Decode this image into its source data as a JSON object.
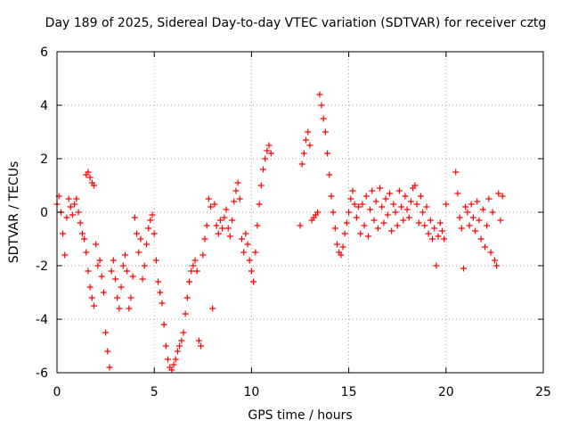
{
  "chart_data": {
    "type": "scatter",
    "title": "Day 189 of 2025, Sidereal Day-to-day VTEC variation (SDTVAR) for receiver cztg",
    "xlabel": "GPS time / hours",
    "ylabel": "SDTVAR / TECUs",
    "xlim": [
      0,
      25
    ],
    "ylim": [
      -6,
      6
    ],
    "x_ticks": [
      0,
      5,
      10,
      15,
      20,
      25
    ],
    "y_ticks": [
      -6,
      -4,
      -2,
      0,
      2,
      4,
      6
    ],
    "grid": true,
    "marker": "plus",
    "color": "#ff0000",
    "series": [
      {
        "name": "SDTVAR",
        "x": [
          0.0,
          0.1,
          0.2,
          0.3,
          0.4,
          0.5,
          0.6,
          0.7,
          0.8,
          0.9,
          1.0,
          1.1,
          1.2,
          1.3,
          1.4,
          1.5,
          1.6,
          1.7,
          1.8,
          1.9,
          1.5,
          1.6,
          1.7,
          1.8,
          1.9,
          2.0,
          2.1,
          2.2,
          2.3,
          2.4,
          2.5,
          2.6,
          2.7,
          2.8,
          2.9,
          3.0,
          3.1,
          3.2,
          3.3,
          3.4,
          3.5,
          3.6,
          3.7,
          3.8,
          3.9,
          4.0,
          4.1,
          4.2,
          4.3,
          4.4,
          4.5,
          4.6,
          4.7,
          4.8,
          4.9,
          5.0,
          5.1,
          5.2,
          5.3,
          5.4,
          5.5,
          5.6,
          5.7,
          5.8,
          5.9,
          6.0,
          6.1,
          6.2,
          6.3,
          6.4,
          6.5,
          6.6,
          6.7,
          6.8,
          6.9,
          7.0,
          7.1,
          7.2,
          7.3,
          7.4,
          7.5,
          7.6,
          7.7,
          7.8,
          7.9,
          8.0,
          8.1,
          8.2,
          8.3,
          8.4,
          8.5,
          8.6,
          8.7,
          8.8,
          8.9,
          9.0,
          9.1,
          9.2,
          9.3,
          9.4,
          9.5,
          9.6,
          9.7,
          9.8,
          9.9,
          10.0,
          10.1,
          10.2,
          10.3,
          10.4,
          10.5,
          10.6,
          10.7,
          10.8,
          10.9,
          11.0,
          12.5,
          12.6,
          12.7,
          12.8,
          12.9,
          13.0,
          13.1,
          13.2,
          13.3,
          13.4,
          13.5,
          13.6,
          13.7,
          13.8,
          13.9,
          14.0,
          14.1,
          14.2,
          14.3,
          14.4,
          14.5,
          14.6,
          14.7,
          14.8,
          14.9,
          15.0,
          15.1,
          15.2,
          15.3,
          15.4,
          15.5,
          15.6,
          15.7,
          15.8,
          15.9,
          16.0,
          16.1,
          16.2,
          16.3,
          16.4,
          16.5,
          16.6,
          16.7,
          16.8,
          16.9,
          17.0,
          17.1,
          17.2,
          17.3,
          17.4,
          17.5,
          17.6,
          17.7,
          17.8,
          17.9,
          18.0,
          18.1,
          18.2,
          18.3,
          18.4,
          18.5,
          18.6,
          18.7,
          18.8,
          18.9,
          19.0,
          19.1,
          19.2,
          19.3,
          19.4,
          19.5,
          19.6,
          19.7,
          19.8,
          19.9,
          20.0,
          20.5,
          20.6,
          20.7,
          20.8,
          20.9,
          21.0,
          21.1,
          21.2,
          21.3,
          21.4,
          21.5,
          21.6,
          21.7,
          21.8,
          21.9,
          22.0,
          22.1,
          22.2,
          22.3,
          22.4,
          22.5,
          22.6,
          22.7,
          22.8,
          22.9
        ],
        "y": [
          0.3,
          0.6,
          0.0,
          -0.8,
          -1.6,
          -0.2,
          0.5,
          0.2,
          -0.1,
          0.3,
          0.5,
          0.0,
          -0.4,
          -0.8,
          -1.0,
          -1.5,
          -2.2,
          -2.8,
          -3.2,
          -3.5,
          1.4,
          1.5,
          1.3,
          1.1,
          1.0,
          -1.2,
          -2.0,
          -1.8,
          -2.4,
          -3.0,
          -4.5,
          -5.2,
          -5.8,
          -2.2,
          -1.8,
          -2.5,
          -3.2,
          -3.6,
          -2.8,
          -2.0,
          -1.6,
          -2.2,
          -3.6,
          -3.2,
          -2.4,
          -0.2,
          -0.8,
          -1.5,
          -1.0,
          -2.5,
          -2.0,
          -1.2,
          -0.6,
          -0.3,
          -0.1,
          -0.8,
          -1.8,
          -2.6,
          -3.0,
          -3.4,
          -4.2,
          -5.0,
          -5.5,
          -5.8,
          -5.9,
          -5.7,
          -5.5,
          -5.2,
          -5.0,
          -4.8,
          -4.5,
          -3.8,
          -3.2,
          -2.6,
          -2.2,
          -2.0,
          -1.8,
          -2.2,
          -4.8,
          -5.0,
          -1.6,
          -1.0,
          -0.5,
          0.5,
          0.2,
          -3.6,
          0.3,
          -0.5,
          -0.8,
          -0.3,
          -0.6,
          -0.2,
          0.1,
          -0.6,
          -0.9,
          -0.3,
          0.4,
          0.8,
          1.1,
          0.5,
          -1.0,
          -1.5,
          -0.8,
          -1.2,
          -1.8,
          -2.2,
          -2.6,
          -1.5,
          -0.5,
          0.3,
          1.0,
          1.6,
          2.0,
          2.3,
          2.5,
          2.2,
          -0.5,
          1.8,
          2.2,
          2.7,
          3.0,
          2.5,
          -0.3,
          -0.2,
          -0.1,
          0.0,
          4.4,
          4.0,
          3.5,
          3.0,
          2.2,
          1.4,
          0.6,
          0.0,
          -0.6,
          -1.2,
          -1.5,
          -1.6,
          -1.3,
          -0.8,
          -0.4,
          0.0,
          0.5,
          0.8,
          0.3,
          -0.2,
          0.2,
          -0.8,
          0.3,
          -0.5,
          0.6,
          -0.9,
          0.1,
          0.8,
          -0.3,
          0.4,
          -0.6,
          0.9,
          0.2,
          -0.4,
          0.5,
          -0.1,
          0.7,
          -0.7,
          0.3,
          0.0,
          -0.5,
          0.8,
          0.2,
          -0.3,
          0.6,
          0.1,
          -0.2,
          0.4,
          0.9,
          1.0,
          0.3,
          -0.4,
          0.6,
          0.0,
          -0.5,
          0.2,
          -0.8,
          -0.3,
          -1.0,
          -0.6,
          -2.0,
          -0.9,
          -0.4,
          -0.7,
          -1.0,
          0.3,
          1.5,
          0.7,
          -0.2,
          -0.6,
          -2.1,
          0.2,
          0.0,
          -0.5,
          0.3,
          -0.2,
          -0.7,
          0.4,
          -0.3,
          -1.0,
          0.1,
          -1.3,
          -0.5,
          0.5,
          -1.5,
          0.0,
          -1.8,
          -2.0,
          0.7,
          -0.3,
          0.6
        ]
      }
    ]
  }
}
